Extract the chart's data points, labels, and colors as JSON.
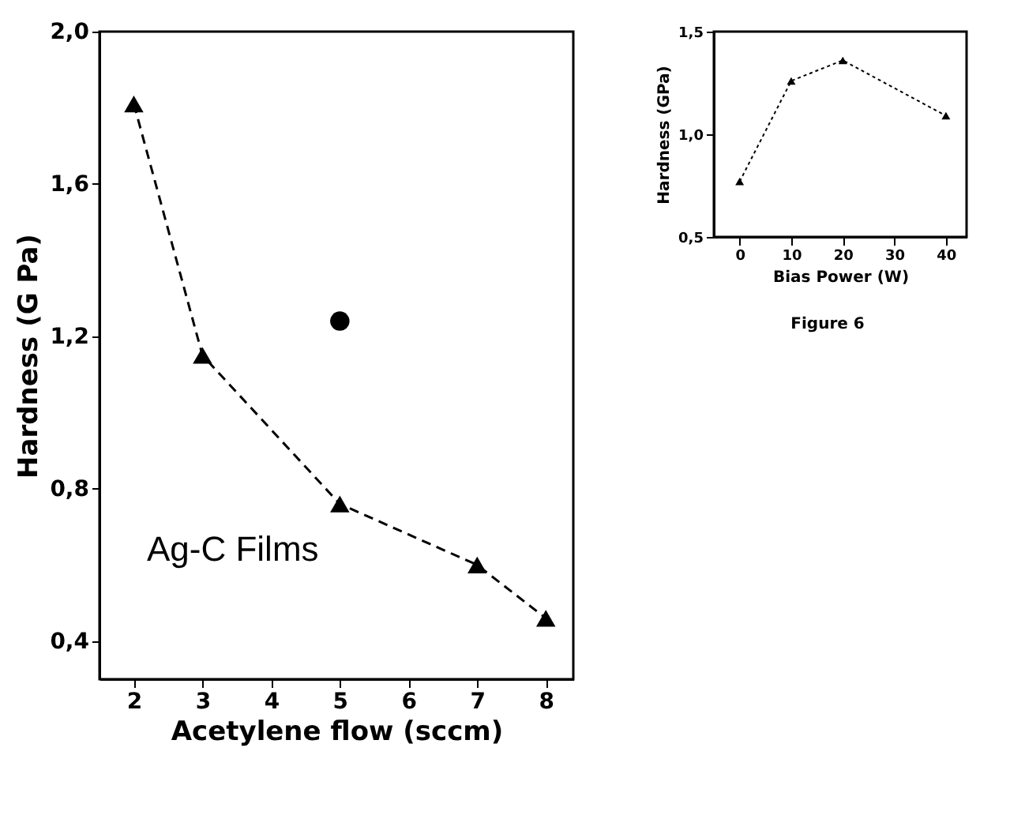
{
  "chart_data": [
    {
      "type": "line",
      "xlabel": "Acetylene flow  (sccm)",
      "ylabel": "Hardness (G Pa)",
      "x": [
        2,
        3,
        5,
        7,
        8
      ],
      "series": [
        {
          "color": "#000000",
          "marker": "triangle",
          "line_style": "dashed",
          "values": [
            1.81,
            1.15,
            0.76,
            0.6,
            0.46
          ]
        },
        {
          "type": "scatter",
          "color": "#000000",
          "marker": "circle",
          "x": [
            5
          ],
          "values": [
            1.24
          ]
        }
      ],
      "xlim": [
        1.5,
        8.4
      ],
      "xticks": [
        2,
        3,
        4,
        5,
        6,
        7,
        8
      ],
      "ylim": [
        0.3,
        2.0
      ],
      "yticks": [
        {
          "value": 0.4,
          "label": "0,4"
        },
        {
          "value": 0.8,
          "label": "0,8"
        },
        {
          "value": 1.2,
          "label": "1,2"
        },
        {
          "value": 1.6,
          "label": "1,6"
        },
        {
          "value": 2.0,
          "label": "2,0"
        }
      ],
      "annotations": [
        "Ag-C Films"
      ]
    },
    {
      "type": "line",
      "xlabel": "Bias Power (W)",
      "ylabel": "Hardness (GPa)",
      "x": [
        0,
        10,
        20,
        40
      ],
      "series": [
        {
          "color": "#000000",
          "marker": "triangle",
          "line_style": "dotted",
          "values": [
            0.77,
            1.26,
            1.36,
            1.09
          ]
        }
      ],
      "xlim": [
        -5,
        44
      ],
      "xticks": [
        0,
        10,
        20,
        30,
        40
      ],
      "ylim": [
        0.5,
        1.5
      ],
      "yticks": [
        {
          "value": 0.5,
          "label": "0,5"
        },
        {
          "value": 1.0,
          "label": "1,0"
        },
        {
          "value": 1.5,
          "label": "1,5"
        }
      ],
      "annotations": [
        "Figure 6"
      ]
    }
  ]
}
